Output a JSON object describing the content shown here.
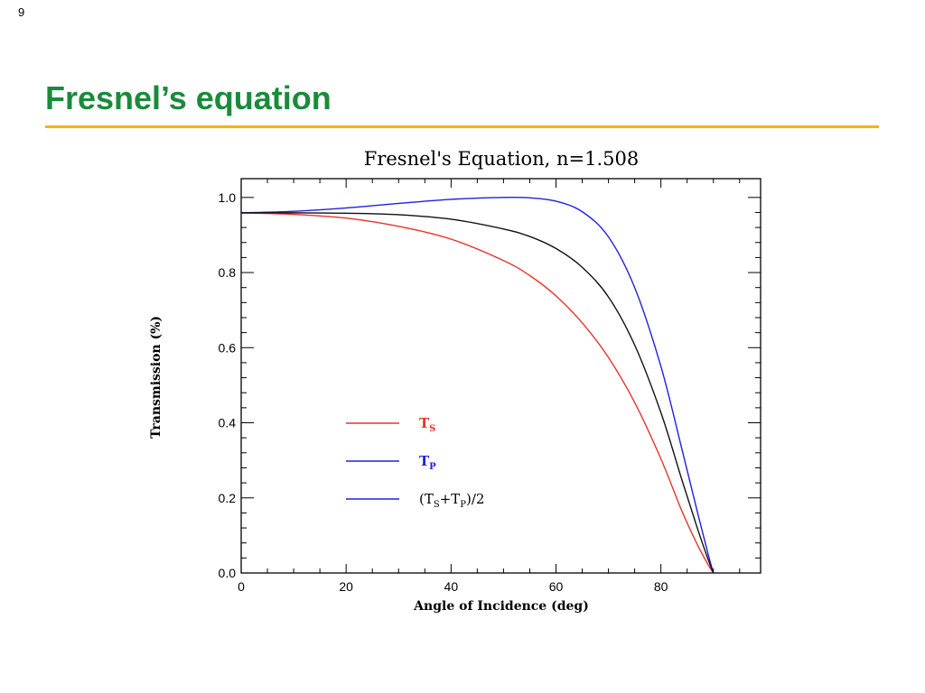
{
  "slide": {
    "number": "9",
    "title": "Fresnel’s equation",
    "rule_color": "#f5b400",
    "title_color": "#1b8a3b"
  },
  "chart_data": {
    "type": "line",
    "title": "Fresnel's Equation, n=1.508",
    "xlabel": "Angle of Incidence (deg)",
    "ylabel": "Transmission (%)",
    "xlim": [
      0,
      99
    ],
    "ylim": [
      0,
      1.05
    ],
    "x_ticks": [
      0,
      20,
      40,
      60,
      80
    ],
    "y_ticks": [
      0.0,
      0.2,
      0.4,
      0.6,
      0.8,
      1.0
    ],
    "x_tick_labels": [
      "0",
      "20",
      "40",
      "60",
      "80"
    ],
    "y_tick_labels": [
      "0.0",
      "0.2",
      "0.4",
      "0.6",
      "0.8",
      "1.0"
    ],
    "grid": false,
    "legend_position": "center-left",
    "x": [
      0,
      10,
      20,
      30,
      40,
      50,
      55,
      60,
      65,
      70,
      75,
      80,
      84,
      87,
      89,
      90
    ],
    "series": [
      {
        "name": "T_S",
        "legend_main": "T",
        "legend_sub": "S",
        "color": "#e8332a",
        "values": [
          0.959,
          0.955,
          0.945,
          0.923,
          0.889,
          0.832,
          0.792,
          0.738,
          0.666,
          0.574,
          0.454,
          0.304,
          0.165,
          0.074,
          0.022,
          0.0
        ]
      },
      {
        "name": "T_P",
        "legend_main": "T",
        "legend_sub": "P",
        "color": "#2020e0",
        "values": [
          0.959,
          0.963,
          0.972,
          0.984,
          0.995,
          1.0,
          0.999,
          0.99,
          0.962,
          0.895,
          0.76,
          0.55,
          0.33,
          0.16,
          0.05,
          0.0
        ]
      },
      {
        "name": "(T_S+T_P)/2",
        "legend_text": "(T_S+T_P)/2",
        "color": "#111111",
        "legend_color": "#2020e0",
        "values": [
          0.959,
          0.959,
          0.958,
          0.954,
          0.942,
          0.916,
          0.896,
          0.864,
          0.814,
          0.735,
          0.607,
          0.427,
          0.248,
          0.117,
          0.036,
          0.0
        ]
      }
    ]
  }
}
